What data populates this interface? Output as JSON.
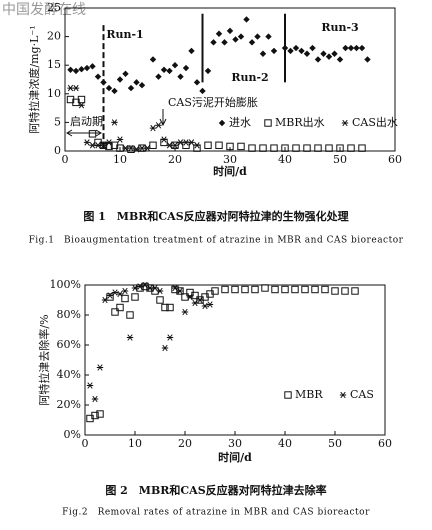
{
  "watermark": "中国发酵在线",
  "chart_data": [
    {
      "type": "scatter",
      "caption": "图 1　MBR和CAS反应器对阿特拉津的生物强化处理",
      "caption_en": "Fig.1　Bioaugmentation treatment of atrazine in MBR and CAS bioreactor",
      "xlabel": "时间/d",
      "ylabel": "阿特拉津浓度/mg·L⁻¹",
      "xlim": [
        0,
        60
      ],
      "xticks": [
        0,
        10,
        20,
        30,
        40,
        50,
        60
      ],
      "ylim": [
        0,
        25
      ],
      "yticks": [
        0,
        5,
        10,
        15,
        20,
        25
      ],
      "legend": "lower right",
      "phase_boundaries": [
        7,
        25,
        40
      ],
      "annotations": [
        "Run-1",
        "Run-2",
        "Run-3",
        "启动期",
        "CAS污泥开始膨胀"
      ],
      "series": [
        {
          "name": "进水",
          "color": "#111111",
          "marker": "diamond",
          "x": [
            1,
            2,
            3,
            4,
            5,
            6,
            7,
            8,
            9,
            10,
            11,
            12,
            13,
            14,
            16,
            17,
            18,
            19,
            20,
            21,
            22,
            23,
            24,
            25,
            26,
            27,
            28,
            29,
            30,
            31,
            32,
            33,
            34,
            35,
            36,
            37,
            38,
            40,
            41,
            42,
            43,
            44,
            45,
            46,
            47,
            48,
            49,
            50,
            51,
            52,
            53,
            54,
            55
          ],
          "values": [
            14.2,
            14,
            14.3,
            14.5,
            14.8,
            13,
            12,
            11,
            10.5,
            12.5,
            13.5,
            11,
            12,
            11.5,
            16,
            13,
            14.2,
            14,
            15,
            13,
            14.5,
            17.5,
            12,
            10.5,
            14,
            19,
            20.5,
            19,
            21,
            19.5,
            20,
            23,
            19,
            20,
            17,
            20,
            17.5,
            18,
            17.5,
            18,
            17.5,
            17,
            18,
            16,
            17,
            16.5,
            17,
            16,
            18,
            18,
            18,
            18,
            16
          ]
        },
        {
          "name": "MBR出水",
          "color": "#111111",
          "marker": "square",
          "x": [
            1,
            2,
            3,
            5,
            6,
            7,
            8,
            9,
            10,
            12,
            14,
            16,
            18,
            20,
            22,
            24,
            26,
            28,
            30,
            32,
            34,
            36,
            38,
            40,
            42,
            44,
            46,
            48,
            50,
            52,
            54
          ],
          "values": [
            9,
            8.5,
            9,
            3,
            1.5,
            1,
            0.8,
            1,
            0.5,
            0.3,
            0.5,
            1,
            1.5,
            1,
            1,
            0.5,
            1,
            1,
            0.8,
            0.8,
            0.5,
            0.5,
            0.5,
            0.5,
            0.5,
            0.5,
            0.5,
            0.5,
            0.5,
            0.5,
            0.5
          ]
        },
        {
          "name": "CAS出水",
          "color": "#111111",
          "marker": "asterisk",
          "x": [
            1,
            2,
            3,
            4,
            5,
            6,
            7,
            8,
            9,
            10,
            11,
            12,
            13,
            14,
            15,
            16,
            17,
            18,
            19,
            20,
            21,
            22,
            23,
            24
          ],
          "values": [
            11,
            11,
            8,
            1.5,
            1,
            1,
            1,
            1.5,
            5,
            2,
            0.5,
            0.5,
            0.3,
            0.5,
            0.5,
            4,
            4.5,
            2,
            1,
            1,
            1.5,
            1.5,
            1.5,
            1
          ]
        }
      ]
    },
    {
      "type": "scatter",
      "caption": "图 2　MBR和CAS反应器对阿特拉津去除率",
      "caption_en": "Fig.2　Removal rates of atrazine in MBR and CAS bioreactor",
      "xlabel": "时间/d",
      "ylabel": "阿特拉津去除率/%",
      "xlim": [
        0,
        60
      ],
      "xticks": [
        0,
        10,
        20,
        30,
        40,
        50,
        60
      ],
      "ylim": [
        0,
        100
      ],
      "yticks": [
        {
          "value": 0,
          "label": "0%"
        },
        {
          "value": 20,
          "label": "20%"
        },
        {
          "value": 40,
          "label": "40%"
        },
        {
          "value": 60,
          "label": "60%"
        },
        {
          "value": 80,
          "label": "80%"
        },
        {
          "value": 100,
          "label": "100%"
        }
      ],
      "legend": "lower right",
      "series": [
        {
          "name": "MBR",
          "color": "#111111",
          "marker": "square",
          "x": [
            1,
            2,
            3,
            5,
            6,
            7,
            8,
            9,
            10,
            11,
            12,
            13,
            14,
            15,
            16,
            17,
            18,
            19,
            20,
            21,
            22,
            23,
            24,
            25,
            26,
            28,
            30,
            32,
            34,
            36,
            38,
            40,
            42,
            44,
            46,
            48,
            50,
            52,
            54
          ],
          "values": [
            11,
            13,
            14,
            92,
            82,
            85,
            91,
            80,
            92,
            98,
            99,
            98,
            96,
            90,
            85,
            85,
            97,
            96,
            92,
            95,
            93,
            90,
            92,
            94,
            96,
            97,
            97,
            97,
            97,
            98,
            97,
            97,
            97,
            97,
            97,
            97,
            96,
            96,
            96
          ]
        },
        {
          "name": "CAS",
          "color": "#111111",
          "marker": "asterisk",
          "x": [
            1,
            2,
            3,
            4,
            5,
            6,
            7,
            8,
            9,
            10,
            11,
            12,
            13,
            14,
            15,
            16,
            17,
            18,
            19,
            20,
            21,
            22,
            23,
            24,
            25
          ],
          "values": [
            33,
            24,
            45,
            90,
            93,
            95,
            94,
            96,
            65,
            98,
            99,
            100,
            98,
            98,
            96,
            58,
            65,
            98,
            96,
            82,
            92,
            88,
            90,
            86,
            87
          ]
        }
      ]
    }
  ]
}
